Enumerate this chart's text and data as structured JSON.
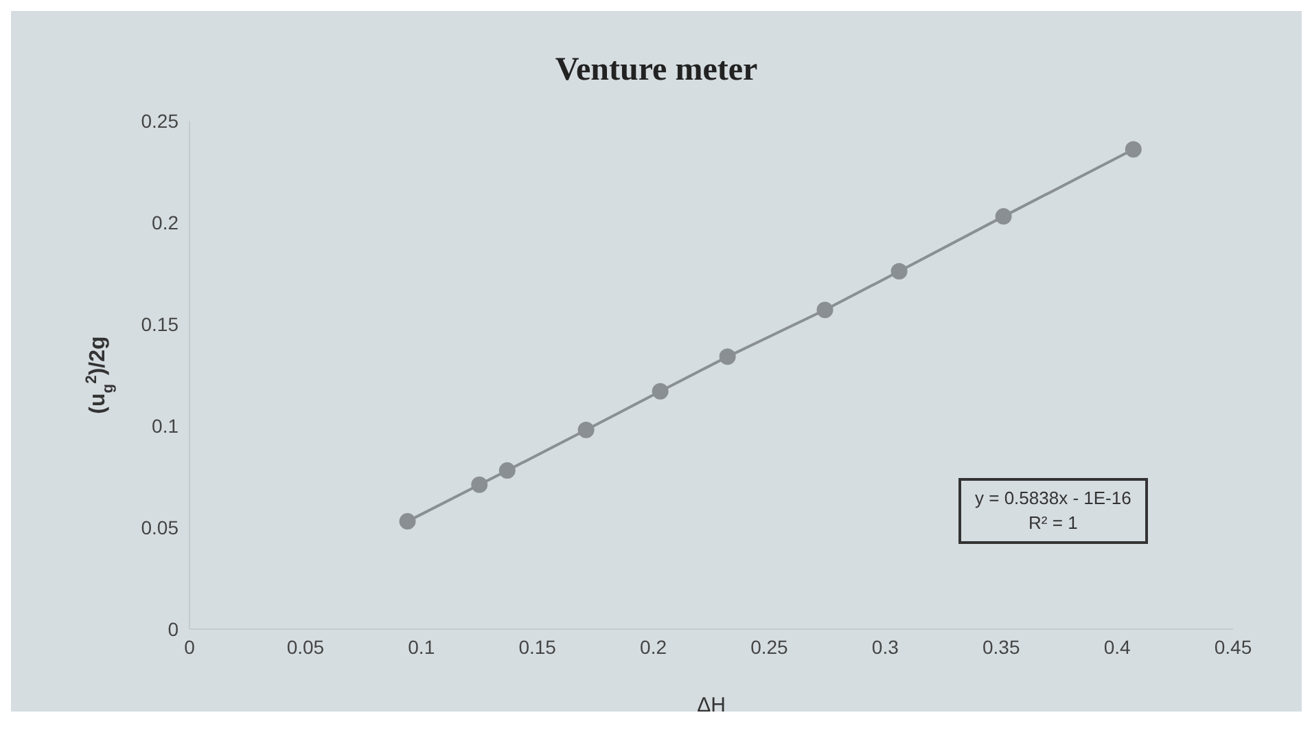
{
  "chart_data": {
    "type": "line",
    "title": "Venture meter",
    "xlabel": "ΔH",
    "ylabel": "(u$_{g}$$^{2}$)/2g",
    "x": [
      0.094,
      0.125,
      0.137,
      0.171,
      0.203,
      0.232,
      0.274,
      0.306,
      0.351,
      0.407
    ],
    "series": [
      {
        "color": "#8a8f93",
        "values": [
          0.053,
          0.071,
          0.078,
          0.098,
          0.117,
          0.134,
          0.157,
          0.176,
          0.203,
          0.236
        ]
      }
    ],
    "xlim": [
      0,
      0.45
    ],
    "xticks": [
      0,
      0.05,
      0.1,
      0.15,
      0.2,
      0.25,
      0.3,
      0.35,
      0.4,
      0.45
    ],
    "ylim": [
      0,
      0.25
    ],
    "yticks": [
      0,
      0.05,
      0.1,
      0.15,
      0.2,
      0.25
    ],
    "annotations": [
      "y = 0.5838x - 1E-16",
      "R² = 1"
    ],
    "marker": "circle",
    "line_style": "solid",
    "grid": false,
    "legend": false
  }
}
